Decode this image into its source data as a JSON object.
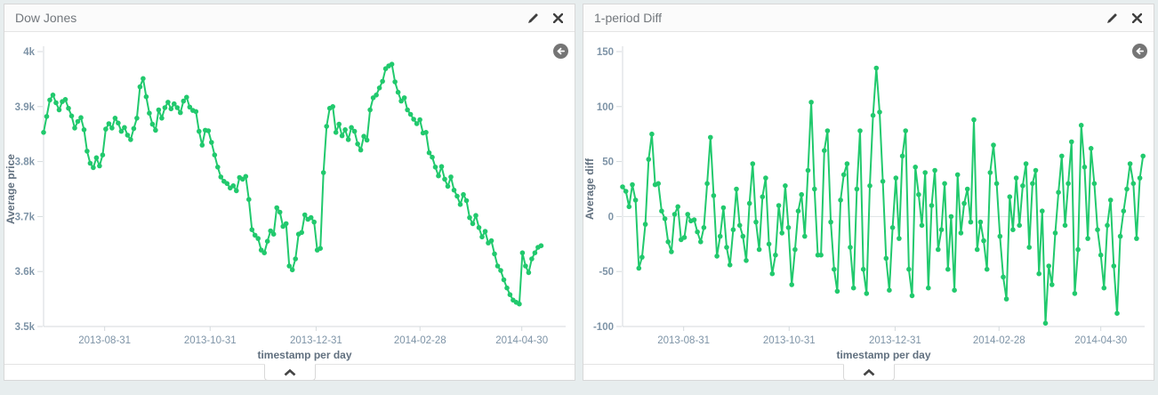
{
  "colors": {
    "accent_green": "#21c96d",
    "axis_text": "#7d93a6",
    "axis_title": "#61707f",
    "axis_line": "#d4dadd",
    "zero_line": "#dde2e5",
    "title_text": "#72777c",
    "icon_dark": "#3f3f3f",
    "back_circle_bg": "#757575"
  },
  "icons": {
    "edit": "pencil",
    "close": "x-mark",
    "back": "circle-arrow-left",
    "collapse": "chevron-up"
  },
  "panels": [
    {
      "title": "Dow Jones"
    },
    {
      "title": "1-period Diff"
    }
  ],
  "chart_data": [
    {
      "type": "line",
      "title": "Dow Jones",
      "xlabel": "timestamp per day",
      "ylabel": "Average price",
      "ylim": [
        3500,
        4000
      ],
      "grid": false,
      "zero_line": false,
      "legend": "none",
      "yticks": [
        {
          "label": "4k",
          "value": 4000
        },
        {
          "label": "3.9k",
          "value": 3900
        },
        {
          "label": "3.8k",
          "value": 3800
        },
        {
          "label": "3.7k",
          "value": 3700
        },
        {
          "label": "3.6k",
          "value": 3600
        },
        {
          "label": "3.5k",
          "value": 3500
        }
      ],
      "xticks": [
        {
          "label": "2013-08-31",
          "f": 0.117
        },
        {
          "label": "2013-10-31",
          "f": 0.319
        },
        {
          "label": "2013-12-31",
          "f": 0.522
        },
        {
          "label": "2014-02-28",
          "f": 0.721
        },
        {
          "label": "2014-04-30",
          "f": 0.916
        }
      ],
      "data_span_fraction": 0.953,
      "series": [
        {
          "name": "Average price",
          "values": [
            3853,
            3882,
            3912,
            3921,
            3907,
            3894,
            3909,
            3913,
            3897,
            3883,
            3861,
            3873,
            3880,
            3858,
            3819,
            3797,
            3789,
            3807,
            3792,
            3812,
            3859,
            3869,
            3861,
            3879,
            3870,
            3855,
            3862,
            3848,
            3840,
            3860,
            3879,
            3936,
            3951,
            3918,
            3888,
            3868,
            3857,
            3894,
            3879,
            3898,
            3908,
            3896,
            3905,
            3898,
            3889,
            3910,
            3917,
            3899,
            3893,
            3891,
            3855,
            3830,
            3857,
            3856,
            3835,
            3812,
            3790,
            3772,
            3764,
            3760,
            3752,
            3756,
            3747,
            3771,
            3768,
            3773,
            3731,
            3676,
            3666,
            3660,
            3639,
            3634,
            3655,
            3674,
            3668,
            3716,
            3708,
            3682,
            3687,
            3610,
            3603,
            3623,
            3668,
            3671,
            3703,
            3695,
            3698,
            3690,
            3639,
            3642,
            3780,
            3864,
            3897,
            3900,
            3853,
            3868,
            3847,
            3858,
            3840,
            3862,
            3855,
            3832,
            3821,
            3846,
            3839,
            3894,
            3916,
            3921,
            3934,
            3946,
            3969,
            3974,
            3977,
            3945,
            3926,
            3910,
            3916,
            3894,
            3886,
            3877,
            3869,
            3876,
            3852,
            3853,
            3816,
            3808,
            3790,
            3774,
            3791,
            3768,
            3755,
            3772,
            3748,
            3737,
            3722,
            3740,
            3729,
            3698,
            3687,
            3702,
            3680,
            3663,
            3673,
            3652,
            3656,
            3632,
            3610,
            3602,
            3585,
            3570,
            3558,
            3548,
            3544,
            3541,
            3634,
            3610,
            3598,
            3623,
            3634,
            3644,
            3647
          ]
        }
      ]
    },
    {
      "type": "line",
      "title": "1-period Diff",
      "xlabel": "timestamp per day",
      "ylabel": "Average diff",
      "ylim": [
        -100,
        150
      ],
      "grid": false,
      "zero_line": true,
      "legend": "none",
      "yticks": [
        {
          "label": "150",
          "value": 150
        },
        {
          "label": "100",
          "value": 100
        },
        {
          "label": "50",
          "value": 50
        },
        {
          "label": "0",
          "value": 0
        },
        {
          "label": "-50",
          "value": -50
        },
        {
          "label": "-100",
          "value": -100
        }
      ],
      "xticks": [
        {
          "label": "2013-08-31",
          "f": 0.117
        },
        {
          "label": "2013-10-31",
          "f": 0.319
        },
        {
          "label": "2013-12-31",
          "f": 0.522
        },
        {
          "label": "2014-02-28",
          "f": 0.721
        },
        {
          "label": "2014-04-30",
          "f": 0.916
        }
      ],
      "data_span_fraction": 0.997,
      "series": [
        {
          "name": "Average diff",
          "values": [
            27,
            23,
            9,
            29,
            15,
            -47,
            -37,
            -7,
            52,
            75,
            29,
            30,
            5,
            -2,
            -23,
            -32,
            2,
            9,
            -21,
            -19,
            2,
            -4,
            -3,
            -14,
            -23,
            -10,
            30,
            72,
            19,
            -36,
            -18,
            8,
            -28,
            -44,
            -12,
            25,
            -8,
            -18,
            -40,
            12,
            48,
            -5,
            -30,
            18,
            35,
            -25,
            -52,
            -35,
            10,
            -15,
            28,
            -10,
            -62,
            -30,
            5,
            20,
            -18,
            42,
            104,
            25,
            -35,
            -35,
            60,
            78,
            -5,
            -48,
            -68,
            15,
            38,
            48,
            -28,
            -65,
            25,
            78,
            -48,
            -70,
            28,
            92,
            135,
            95,
            32,
            -38,
            -67,
            -10,
            35,
            -20,
            55,
            78,
            -48,
            -72,
            45,
            20,
            -8,
            40,
            -65,
            10,
            42,
            -30,
            -12,
            30,
            -48,
            0,
            -67,
            38,
            -15,
            12,
            25,
            -5,
            88,
            -30,
            -5,
            -22,
            -48,
            40,
            65,
            30,
            -18,
            -55,
            -75,
            18,
            -12,
            35,
            -8,
            28,
            48,
            -28,
            30,
            42,
            -52,
            5,
            -97,
            -45,
            -62,
            -15,
            22,
            55,
            -8,
            30,
            68,
            -70,
            -30,
            83,
            45,
            -20,
            62,
            30,
            -12,
            -35,
            -65,
            -8,
            15,
            -45,
            -88,
            -18,
            5,
            25,
            48,
            30,
            -20,
            35,
            55
          ]
        }
      ]
    }
  ]
}
